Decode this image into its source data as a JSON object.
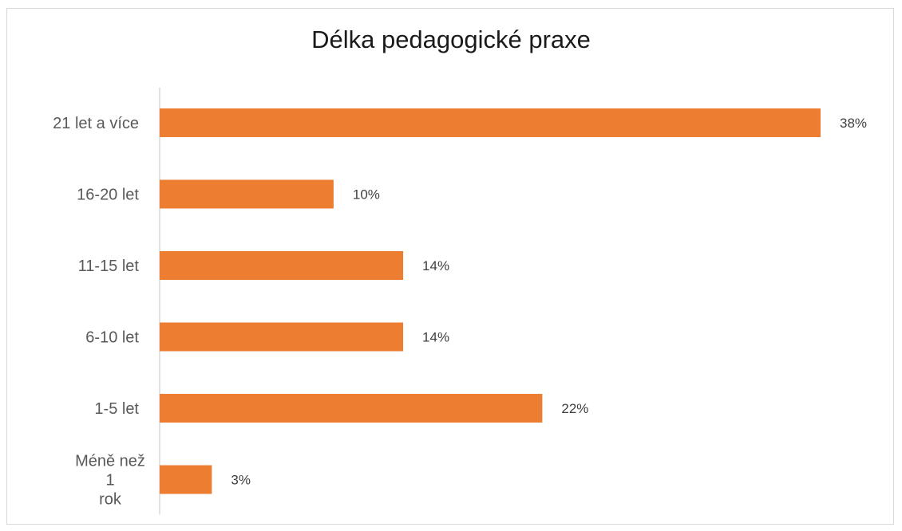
{
  "chart_data": {
    "type": "bar",
    "orientation": "horizontal",
    "title": "Délka pedagogické praxe",
    "categories": [
      "21 let a více",
      "16-20 let",
      "11-15 let",
      "6-10 let",
      "1-5 let",
      "Méně než 1 rok"
    ],
    "category_lines": [
      [
        "21 let a více"
      ],
      [
        "16-20 let"
      ],
      [
        "11-15 let"
      ],
      [
        "6-10 let"
      ],
      [
        "1-5 let"
      ],
      [
        "Méně než",
        "1",
        "rok"
      ]
    ],
    "values": [
      38,
      10,
      14,
      14,
      22,
      3
    ],
    "value_labels": [
      "38%",
      "10%",
      "14%",
      "14%",
      "22%",
      "3%"
    ],
    "xlim": [
      0,
      38
    ],
    "grid": false,
    "legend": "none",
    "bar_color": "#ED7D31",
    "axis_color": "#d9d9d9"
  }
}
